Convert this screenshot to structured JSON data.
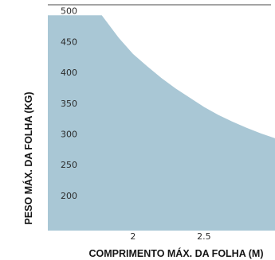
{
  "chart_data": {
    "type": "area",
    "title": "",
    "xlabel": "COMPRIMENTO MÁX. DA FOLHA (M)",
    "ylabel": "PESO MÁX. DA FOLHA (KG)",
    "xlim": [
      1.4,
      3.0
    ],
    "ylim": [
      143,
      510
    ],
    "grid": false,
    "legend": "none",
    "x_ticks": [
      {
        "value": 2,
        "label": "2"
      },
      {
        "value": 2.5,
        "label": "2.5"
      }
    ],
    "y_ticks": [
      {
        "value": 500,
        "label": "500"
      },
      {
        "value": 450,
        "label": "450"
      },
      {
        "value": 400,
        "label": "400"
      },
      {
        "value": 350,
        "label": "350"
      },
      {
        "value": 300,
        "label": "300"
      },
      {
        "value": 250,
        "label": "250"
      },
      {
        "value": 200,
        "label": "200"
      }
    ],
    "series": [
      {
        "color": "#a9c7d5",
        "x": [
          1.4,
          1.5,
          1.6,
          1.7,
          1.75,
          1.78,
          1.9,
          2.0,
          2.1,
          2.2,
          2.3,
          2.4,
          2.5,
          2.6,
          2.7,
          2.8,
          2.9,
          3.0
        ],
        "values": [
          493,
          493,
          493,
          493,
          493,
          493,
          456,
          430,
          410,
          391,
          374,
          359,
          344,
          331,
          320,
          310,
          301,
          293
        ]
      }
    ]
  },
  "colors": {
    "area_fill": "#a9c7d5",
    "top_line": "#4a4a4a"
  }
}
